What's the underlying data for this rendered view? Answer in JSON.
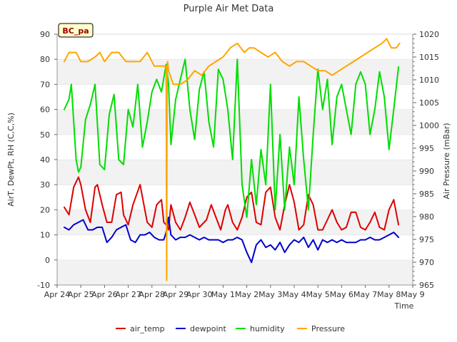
{
  "chart_data": {
    "type": "line",
    "title": "Purple Air Met Data",
    "xlabel": "Time",
    "ylabel": "AirT, DewPt, RH (C,C,%)",
    "y2label": "Air Pressure (mBar)",
    "site_badge": "BC_pa",
    "x_tick_labels": [
      "Apr 24",
      "Apr 25",
      "Apr 26",
      "Apr 27",
      "Apr 28",
      "Apr 29",
      "Apr 30",
      "May 1",
      "May 2",
      "May 3",
      "May 4",
      "May 5",
      "May 6",
      "May 7",
      "May 8",
      "May 9"
    ],
    "ylim": [
      -10,
      90
    ],
    "y_ticks": [
      -10,
      0,
      10,
      20,
      30,
      40,
      50,
      60,
      70,
      80,
      90
    ],
    "y2lim": [
      965,
      1020
    ],
    "y2_ticks": [
      965,
      970,
      975,
      980,
      985,
      990,
      995,
      1000,
      1005,
      1010,
      1015,
      1020
    ],
    "xlim_days": [
      0,
      15
    ],
    "grid": "horizontal bands",
    "legend_position": "bottom-center",
    "series": [
      {
        "name": "air_temp",
        "color": "#dd0000",
        "axis": "left",
        "x": [
          0.3,
          0.5,
          0.7,
          0.9,
          1.0,
          1.2,
          1.4,
          1.6,
          1.7,
          1.9,
          2.1,
          2.3,
          2.5,
          2.7,
          2.8,
          3.0,
          3.2,
          3.5,
          3.6,
          3.8,
          4.0,
          4.2,
          4.4,
          4.5,
          4.6,
          4.7,
          4.8,
          5.0,
          5.2,
          5.4,
          5.6,
          5.8,
          6.0,
          6.3,
          6.5,
          6.7,
          6.9,
          7.1,
          7.2,
          7.4,
          7.6,
          7.8,
          8.0,
          8.2,
          8.4,
          8.6,
          8.8,
          9.0,
          9.2,
          9.4,
          9.6,
          9.8,
          10.0,
          10.2,
          10.4,
          10.6,
          10.8,
          11.0,
          11.2,
          11.4,
          11.6,
          11.8,
          12.0,
          12.2,
          12.4,
          12.6,
          12.8,
          13.0,
          13.2,
          13.4,
          13.6,
          13.8,
          14.0,
          14.2,
          14.4
        ],
        "y": [
          21,
          18,
          29,
          33,
          30,
          20,
          15,
          29,
          30,
          22,
          15,
          15,
          26,
          27,
          18,
          14,
          22,
          30,
          25,
          15,
          13,
          22,
          24,
          15,
          14,
          12,
          22,
          15,
          12,
          17,
          23,
          18,
          13,
          16,
          22,
          17,
          12,
          20,
          22,
          15,
          12,
          17,
          25,
          27,
          15,
          14,
          27,
          29,
          17,
          12,
          22,
          30,
          23,
          12,
          14,
          26,
          22,
          12,
          12,
          16,
          20,
          15,
          12,
          13,
          19,
          19,
          13,
          12,
          15,
          19,
          13,
          12,
          20,
          24,
          14
        ]
      },
      {
        "name": "dewpoint",
        "color": "#0000cc",
        "axis": "left",
        "x": [
          0.3,
          0.5,
          0.7,
          0.9,
          1.1,
          1.3,
          1.5,
          1.7,
          1.9,
          2.1,
          2.3,
          2.5,
          2.7,
          2.9,
          3.1,
          3.3,
          3.5,
          3.7,
          3.9,
          4.1,
          4.3,
          4.5,
          4.6,
          4.7,
          4.8,
          5.0,
          5.2,
          5.4,
          5.6,
          5.8,
          6.0,
          6.2,
          6.4,
          6.6,
          6.8,
          7.0,
          7.2,
          7.4,
          7.6,
          7.8,
          8.0,
          8.2,
          8.4,
          8.6,
          8.8,
          9.0,
          9.2,
          9.4,
          9.6,
          9.8,
          10.0,
          10.2,
          10.4,
          10.6,
          10.8,
          11.0,
          11.2,
          11.4,
          11.6,
          11.8,
          12.0,
          12.2,
          12.4,
          12.6,
          12.8,
          13.0,
          13.2,
          13.4,
          13.6,
          13.8,
          14.0,
          14.2,
          14.4
        ],
        "y": [
          13,
          12,
          14,
          15,
          16,
          12,
          12,
          13,
          13,
          7,
          9,
          12,
          13,
          14,
          8,
          7,
          10,
          10,
          11,
          9,
          8,
          8,
          11,
          17,
          10,
          8,
          9,
          9,
          10,
          9,
          8,
          9,
          8,
          8,
          8,
          7,
          8,
          8,
          9,
          8,
          3,
          -1,
          6,
          8,
          5,
          6,
          4,
          7,
          3,
          6,
          8,
          7,
          9,
          5,
          8,
          4,
          8,
          7,
          8,
          7,
          8,
          7,
          7,
          7,
          8,
          8,
          9,
          8,
          8,
          9,
          10,
          11,
          9
        ]
      },
      {
        "name": "humidity",
        "color": "#00dd00",
        "axis": "left",
        "x": [
          0.3,
          0.5,
          0.6,
          0.8,
          0.9,
          1.0,
          1.2,
          1.4,
          1.6,
          1.8,
          2.0,
          2.2,
          2.4,
          2.6,
          2.8,
          3.0,
          3.2,
          3.4,
          3.6,
          3.8,
          4.0,
          4.2,
          4.4,
          4.6,
          4.7,
          4.8,
          5.0,
          5.2,
          5.4,
          5.6,
          5.8,
          6.0,
          6.2,
          6.4,
          6.6,
          6.8,
          7.0,
          7.2,
          7.4,
          7.6,
          7.8,
          8.0,
          8.2,
          8.4,
          8.6,
          8.8,
          9.0,
          9.2,
          9.4,
          9.6,
          9.8,
          10.0,
          10.2,
          10.4,
          10.6,
          10.8,
          11.0,
          11.2,
          11.4,
          11.6,
          11.8,
          12.0,
          12.2,
          12.4,
          12.6,
          12.8,
          13.0,
          13.2,
          13.4,
          13.6,
          13.8,
          14.0,
          14.2,
          14.4
        ],
        "y": [
          60,
          64,
          70,
          40,
          35,
          37,
          56,
          62,
          70,
          38,
          36,
          58,
          66,
          40,
          38,
          60,
          53,
          70,
          45,
          55,
          67,
          72,
          67,
          78,
          70,
          46,
          64,
          72,
          80,
          60,
          48,
          68,
          75,
          55,
          45,
          76,
          72,
          60,
          40,
          80,
          30,
          17,
          40,
          22,
          44,
          30,
          70,
          20,
          50,
          20,
          45,
          30,
          65,
          40,
          20,
          50,
          76,
          60,
          72,
          46,
          65,
          70,
          60,
          50,
          70,
          75,
          70,
          50,
          60,
          75,
          65,
          44,
          60,
          77
        ]
      },
      {
        "name": "Pressure",
        "color": "#ffa500",
        "axis": "right",
        "x": [
          0.3,
          0.5,
          0.8,
          1.0,
          1.3,
          1.6,
          1.8,
          2.0,
          2.3,
          2.6,
          2.9,
          3.2,
          3.5,
          3.8,
          4.1,
          4.3,
          4.6,
          4.62,
          4.64,
          4.66,
          4.7,
          4.9,
          5.2,
          5.5,
          5.8,
          6.1,
          6.4,
          6.7,
          7.0,
          7.3,
          7.6,
          7.9,
          8.1,
          8.3,
          8.6,
          8.9,
          9.2,
          9.5,
          9.8,
          10.1,
          10.4,
          10.7,
          11.0,
          11.3,
          11.6,
          11.9,
          12.2,
          12.5,
          12.8,
          13.1,
          13.4,
          13.7,
          13.9,
          14.1,
          14.3,
          14.45
        ],
        "y": [
          1014,
          1016,
          1016,
          1014,
          1014,
          1015,
          1016,
          1014,
          1016,
          1016,
          1014,
          1014,
          1014,
          1016,
          1013,
          1013,
          1013,
          966,
          1012,
          1014,
          1012,
          1009,
          1009,
          1010,
          1012,
          1011,
          1013,
          1014,
          1015,
          1017,
          1018,
          1016,
          1017,
          1017,
          1016,
          1015,
          1016,
          1014,
          1013,
          1014,
          1014,
          1013,
          1012,
          1012,
          1011,
          1012,
          1013,
          1014,
          1015,
          1016,
          1017,
          1018,
          1019,
          1017,
          1017,
          1018
        ]
      }
    ]
  }
}
